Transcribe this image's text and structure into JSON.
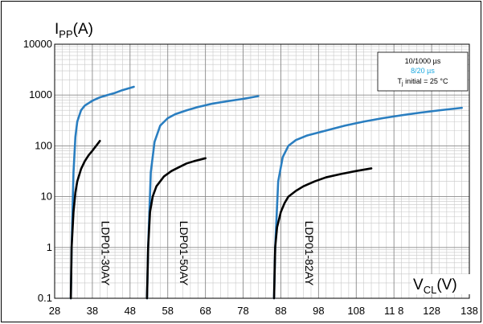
{
  "chart_data": {
    "type": "line",
    "title": "",
    "ylabel_main": "I",
    "ylabel_sub": "PP",
    "ylabel_unit": "(A)",
    "xlabel_main": "V",
    "xlabel_sub": "CL",
    "xlabel_unit": "(V)",
    "yscale": "log",
    "ylim": [
      0.1,
      10000
    ],
    "xlim": [
      28,
      138
    ],
    "y_ticks": [
      "0.1",
      "1",
      "10",
      "100",
      "1000",
      "10000"
    ],
    "x_ticks": [
      "28",
      "38",
      "48",
      "58",
      "68",
      "78",
      "88",
      "98",
      "108",
      "11 8",
      "128",
      "138"
    ],
    "grid": true,
    "legend": {
      "placement": "top-right",
      "line1": "10/1000 µs",
      "line2": "8/20 µs",
      "line3_main": "T",
      "line3_sub": "j",
      "line3_rest": " initial = 25 °C"
    },
    "colors": {
      "pulse_8_20": "#2a7ec0",
      "pulse_10_1000": "#000000",
      "legend_8_20_text": "#1aa8e0"
    },
    "device_labels": [
      "LDP01-30AY",
      "LDP01-50AY",
      "LDP01-82AY"
    ],
    "series": [
      {
        "device": "LDP01-30AY",
        "pulse": "8/20 µs",
        "x": [
          32.3,
          32.5,
          33,
          33.5,
          34,
          35,
          36,
          38,
          40,
          42,
          44,
          46,
          49
        ],
        "y": [
          0.1,
          1,
          30,
          150,
          300,
          500,
          620,
          770,
          900,
          1000,
          1100,
          1250,
          1450
        ]
      },
      {
        "device": "LDP01-30AY",
        "pulse": "10/1000 µs",
        "x": [
          32.3,
          32.5,
          33,
          33.5,
          34,
          35,
          36,
          37,
          38,
          39,
          40
        ],
        "y": [
          0.1,
          1,
          5,
          12,
          20,
          35,
          50,
          65,
          80,
          100,
          125
        ]
      },
      {
        "device": "LDP01-50AY",
        "pulse": "8/20 µs",
        "x": [
          52.5,
          52.8,
          53.5,
          54.5,
          56,
          58,
          60,
          63,
          66,
          70,
          74,
          78,
          82
        ],
        "y": [
          0.1,
          1,
          30,
          120,
          250,
          350,
          420,
          500,
          580,
          680,
          760,
          840,
          950
        ]
      },
      {
        "device": "LDP01-50AY",
        "pulse": "10/1000 µs",
        "x": [
          52.5,
          52.8,
          53.3,
          54,
          55,
          56,
          57,
          59,
          61,
          63,
          65,
          68
        ],
        "y": [
          0.1,
          1,
          5,
          10,
          16,
          20,
          25,
          32,
          38,
          45,
          50,
          57
        ]
      },
      {
        "device": "LDP01-82AY",
        "pulse": "8/20 µs",
        "x": [
          86.2,
          86.5,
          87.3,
          88.5,
          90,
          92,
          95,
          100,
          105,
          110,
          115,
          120,
          125,
          130,
          136
        ],
        "y": [
          0.1,
          1,
          20,
          60,
          100,
          130,
          160,
          200,
          250,
          300,
          350,
          400,
          450,
          500,
          560
        ]
      },
      {
        "device": "LDP01-82AY",
        "pulse": "10/1000 µs",
        "x": [
          86.2,
          86.5,
          87,
          88,
          89,
          90,
          92,
          94,
          97,
          100,
          104,
          108,
          112
        ],
        "y": [
          0.1,
          1,
          2.5,
          5,
          7.5,
          10,
          13,
          16,
          20,
          24,
          28,
          32,
          36
        ]
      }
    ]
  }
}
